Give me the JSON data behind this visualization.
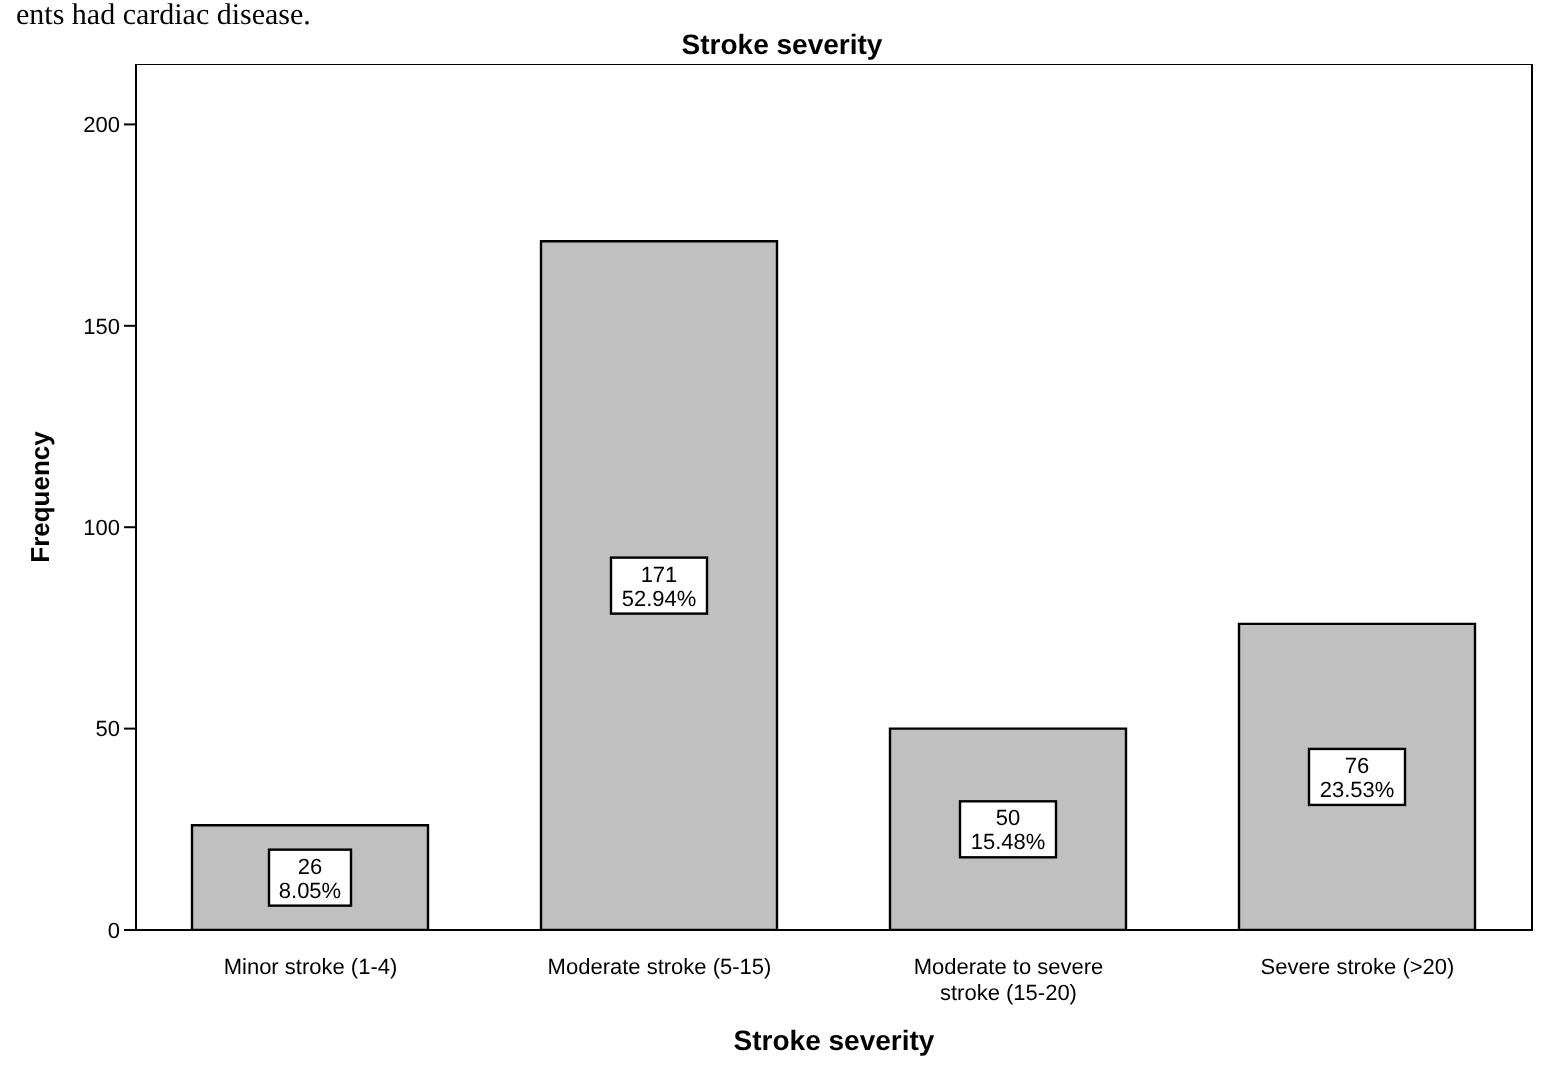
{
  "chart_data": {
    "type": "bar",
    "title": "Stroke severity",
    "xlabel": "Stroke severity",
    "ylabel": "Frequency",
    "annotations": [
      "ents had cardiac disease."
    ],
    "categories": [
      "Minor stroke (1-4)",
      "Moderate stroke (5-15)",
      "Moderate to severe stroke (15-20)",
      "Severe stroke (>20)"
    ],
    "values": [
      26,
      171,
      50,
      76
    ],
    "value_labels": [
      "26\n8.05%",
      "171\n52.94%",
      "50\n15.48%",
      "76\n23.53%"
    ],
    "color": "#c0c0c0",
    "ylim": [
      0,
      215
    ],
    "yticks": [
      0,
      50,
      100,
      150,
      200
    ],
    "grid": false,
    "legend": false
  }
}
